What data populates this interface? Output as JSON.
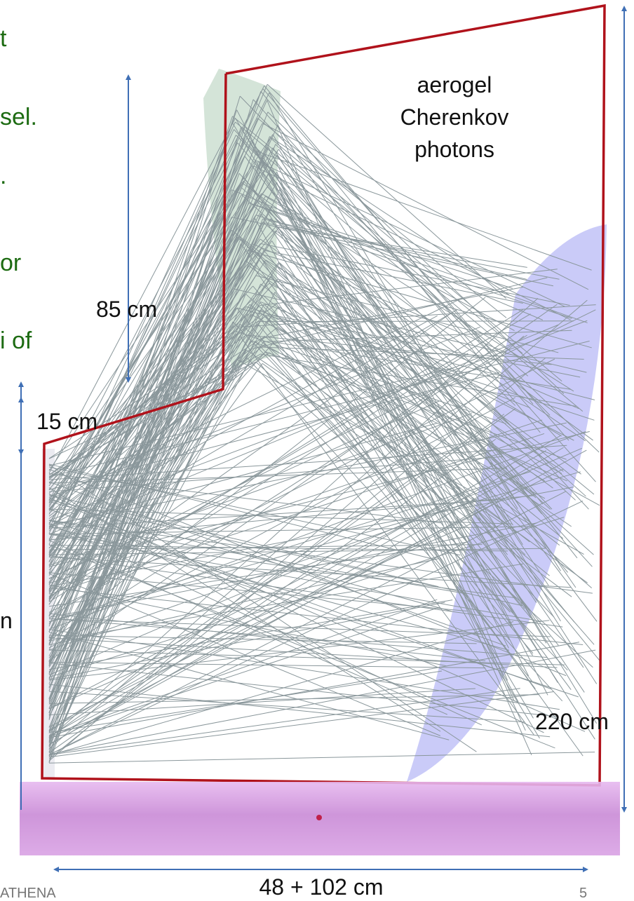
{
  "side_text": [
    "t",
    "sel.",
    ".",
    "or",
    "i of"
  ],
  "side_text_black": "n",
  "labels": {
    "mirror_height": "85 cm",
    "step": "15 cm",
    "total_height": "220 cm",
    "width": "48 + 102 cm",
    "photons": [
      "aerogel",
      "Cherenkov",
      "photons"
    ]
  },
  "footer": {
    "left": "ATHENA",
    "page": "5"
  }
}
